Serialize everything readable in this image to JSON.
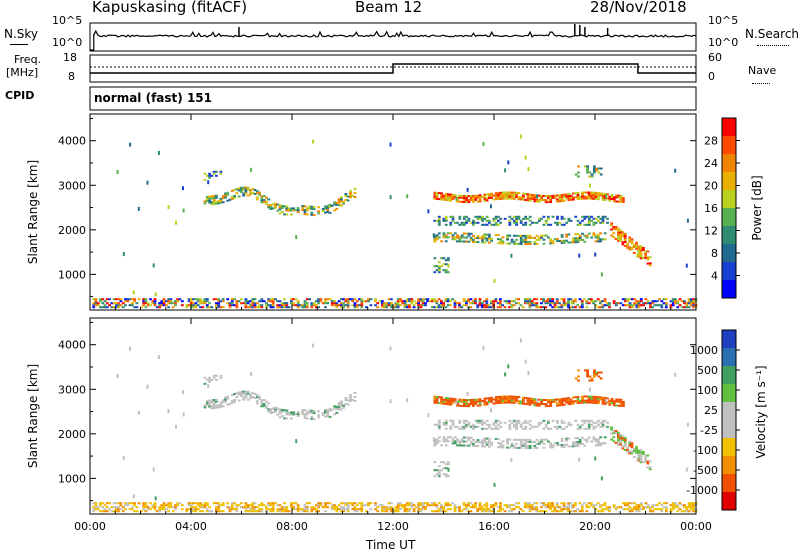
{
  "header": {
    "title": "Kapuskasing (fitACF)",
    "beam": "Beam 12",
    "date": "28/Nov/2018"
  },
  "noise_panel": {
    "left_label": "N.Sky",
    "left_ticks": [
      "10^5",
      "10^0"
    ],
    "right_label": "N.Search",
    "right_ticks": [
      "10^5",
      "10^0"
    ]
  },
  "freq_panel": {
    "left_label_1": "Freq.",
    "left_label_2": "[MHz]",
    "left_ticks": [
      "18",
      "8"
    ],
    "right_label": "Nave",
    "right_ticks": [
      "60",
      "0"
    ]
  },
  "cpid_panel": {
    "label": "CPID",
    "text": "normal (fast) 151"
  },
  "chart_data": [
    {
      "type": "heatmap",
      "name": "power",
      "ylabel": "Slant Range [km]",
      "ylim": [
        200,
        4600
      ],
      "yticks": [
        1000,
        2000,
        3000,
        4000
      ],
      "xlim": [
        0,
        24
      ],
      "xtick_labels": [
        "00:00",
        "04:00",
        "08:00",
        "12:00",
        "16:00",
        "20:00",
        "00:00"
      ],
      "colorbar": {
        "label": "Power [dB]",
        "ticks": [
          "28",
          "24",
          "20",
          "16",
          "12",
          "8",
          "4"
        ],
        "colors": [
          "#ff0000",
          "#ff4a00",
          "#f08400",
          "#e8b000",
          "#b8d020",
          "#58b050",
          "#2e8a70",
          "#206a90",
          "#1840d0",
          "#0000ff"
        ]
      }
    },
    {
      "type": "heatmap",
      "name": "velocity",
      "ylabel": "Slant Range [km]",
      "ylim": [
        200,
        4600
      ],
      "yticks": [
        1000,
        2000,
        3000,
        4000
      ],
      "xlim": [
        0,
        24
      ],
      "xlabel": "Time UT",
      "xtick_labels": [
        "00:00",
        "04:00",
        "08:00",
        "12:00",
        "16:00",
        "20:00",
        "00:00"
      ],
      "colorbar": {
        "label": "Velocity [m s⁻¹]",
        "ticks": [
          "1000",
          "500",
          "100",
          "25",
          "-25",
          "-100",
          "-500",
          "-1000"
        ],
        "colors": [
          "#2040c0",
          "#2a70b0",
          "#40a060",
          "#60c040",
          "#c0c0c0",
          "#c0c0c0",
          "#f0c000",
          "#f09000",
          "#f05000",
          "#e00000"
        ]
      }
    }
  ]
}
